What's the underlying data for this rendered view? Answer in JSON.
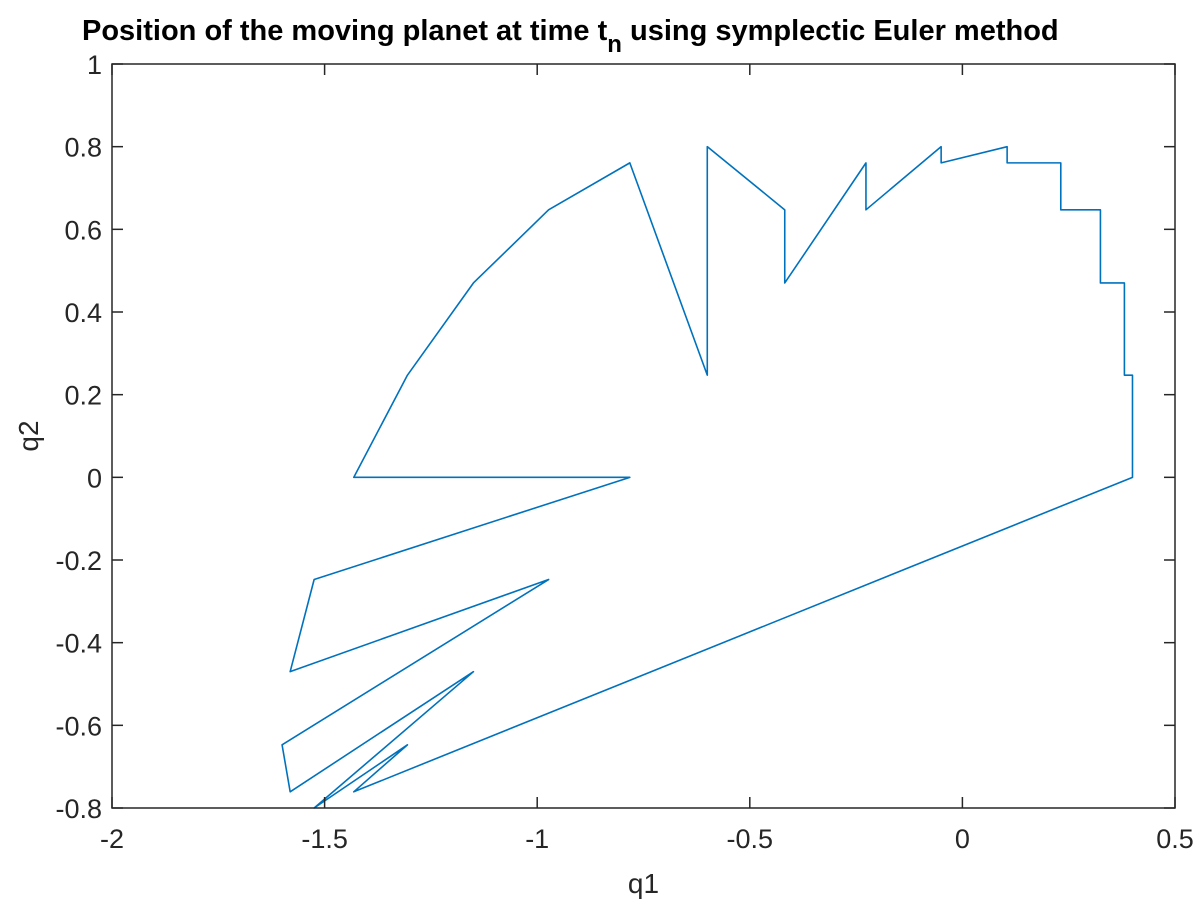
{
  "chart_data": {
    "type": "line",
    "title": {
      "before": "Position of the moving planet at time t",
      "subscript": "n",
      "after": " using symplectic Euler method"
    },
    "xlabel": "q1",
    "ylabel": "q2",
    "xlim": [
      -2,
      0.5
    ],
    "ylim": [
      -0.8,
      1
    ],
    "xticks": [
      -2,
      -1.5,
      -1,
      -0.5,
      0,
      0.5
    ],
    "xtick_labels": [
      "-2",
      "-1.5",
      "-1",
      "-0.5",
      "0",
      "0.5"
    ],
    "yticks": [
      -0.8,
      -0.6,
      -0.4,
      -0.2,
      0,
      0.2,
      0.4,
      0.6,
      0.8,
      1
    ],
    "ytick_labels": [
      "-0.8",
      "-0.6",
      "-0.4",
      "-0.2",
      "0",
      "0.2",
      "0.4",
      "0.6",
      "0.8",
      "1"
    ],
    "grid": false,
    "box": true,
    "series": [
      {
        "color": "#0072BD",
        "x": [
          0.4,
          0.381,
          0.3246,
          0.2314,
          0.1052,
          -0.05,
          -0.2268,
          -0.4178,
          -0.6,
          -0.7822,
          -0.9732,
          -1.15,
          -1.3052,
          -1.4314,
          -1.5246,
          -1.581,
          -1.6,
          -1.581,
          -1.5246,
          -1.4314,
          -1.3052,
          -1.15,
          -0.9732,
          -0.7822,
          -0.6,
          -0.4178,
          -0.2268,
          -0.05,
          0.1052,
          0.2314,
          0.3246,
          0.381,
          0.4
        ],
        "y": [
          0,
          0.2472,
          0.4702,
          0.6472,
          0.7608,
          0.8,
          0.7608,
          0.6472,
          0.8,
          0.7608,
          0.6472,
          0.4702,
          0.2472,
          0,
          -0.2472,
          -0.4702,
          -0.6472,
          -0.7608,
          -0.8,
          -0.7608,
          -0.6472,
          -0.4702,
          -0.2472,
          0,
          0.2472,
          0.4702,
          0.6472,
          0.7608,
          0.8,
          0.7608,
          0.6472,
          0.4702,
          0.2472
        ]
      }
    ]
  },
  "colors": {
    "axis": "#262626",
    "line": "#0072BD",
    "background": "#ffffff"
  }
}
